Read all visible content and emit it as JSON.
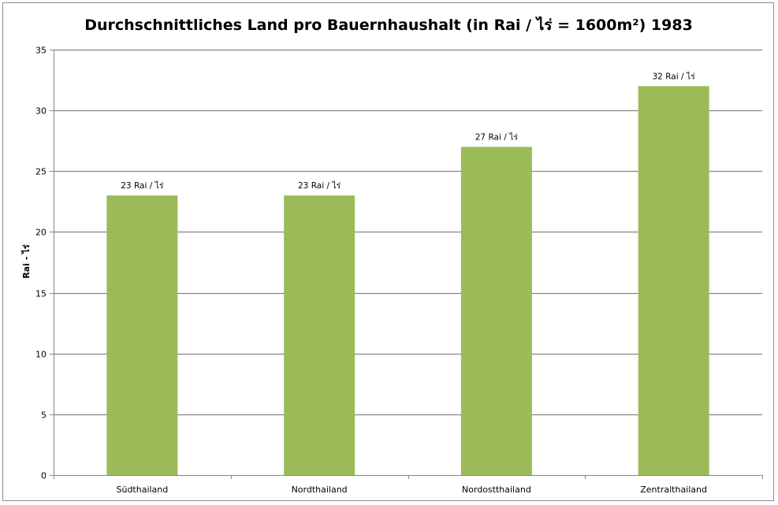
{
  "chart_data": {
    "type": "bar",
    "title": "Durchschnittliches Land pro Bauernhaushalt (in Rai / ไร่ = 1600m²) 1983",
    "xlabel": "",
    "ylabel": "Rai - ไร่",
    "categories": [
      "Südthailand",
      "Nordthailand",
      "Nordostthailand",
      "Zentralthailand"
    ],
    "values": [
      23,
      23,
      27,
      32
    ],
    "data_labels": [
      "23 Rai / ไร่",
      "23 Rai / ไร่",
      "27 Rai / ไร่",
      "32 Rai / ไร่"
    ],
    "ylim": [
      0,
      35
    ],
    "yticks": [
      0,
      5,
      10,
      15,
      20,
      25,
      30,
      35
    ],
    "grid": true,
    "legend": "none",
    "bar_color": "#9BBB59",
    "grid_color": "#868686"
  }
}
